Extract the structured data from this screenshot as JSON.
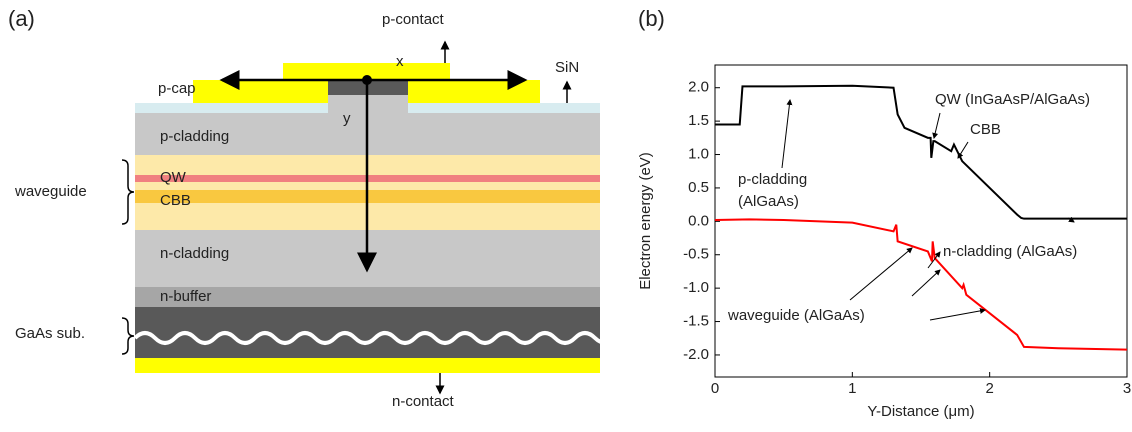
{
  "diagram": {
    "panel": "(a)",
    "p_contact": "p-contact",
    "x_axis": "x",
    "sin": "SiN",
    "p_cap": "p-cap",
    "y_axis": "y",
    "p_cladding": "p-cladding",
    "qw": "QW",
    "cbb": "CBB",
    "n_cladding": "n-cladding",
    "n_buffer": "n-buffer",
    "waveguide": "waveguide",
    "substrate": "GaAs sub.",
    "n_contact": "n-contact"
  },
  "chart_data": {
    "type": "line",
    "panel": "(b)",
    "x_label": "Y-Distance (μm)",
    "y_label": "Electron energy (eV)",
    "xlim": [
      0,
      3
    ],
    "xticks": [
      0,
      1,
      2,
      3
    ],
    "ylim": [
      -2.33,
      2.34
    ],
    "yticks": [
      {
        "value": -2,
        "label": "-2.0"
      },
      {
        "value": -1.5,
        "label": "-1.5"
      },
      {
        "value": -1,
        "label": "-1.0"
      },
      {
        "value": -0.5,
        "label": "-0.5"
      },
      {
        "value": 0,
        "label": "0.0"
      },
      {
        "value": 0.5,
        "label": "0.5"
      },
      {
        "value": 1,
        "label": "1.0"
      },
      {
        "value": 1.5,
        "label": "1.5"
      },
      {
        "value": 2,
        "label": "2.0"
      }
    ],
    "series": [
      {
        "color": "#000000",
        "x": [
          0,
          0.18,
          0.2,
          0.5,
          1.0,
          1.3,
          1.33,
          1.38,
          1.55,
          1.57,
          1.575,
          1.59,
          1.6,
          1.72,
          1.74,
          1.8,
          2.2,
          2.23,
          2.25,
          2.5,
          3.0
        ],
        "values": [
          1.45,
          1.45,
          2.02,
          2.02,
          2.03,
          2.0,
          1.6,
          1.4,
          1.25,
          1.25,
          0.95,
          1.2,
          1.2,
          1.05,
          1.15,
          0.9,
          0.1,
          0.05,
          0.04,
          0.04,
          0.04
        ]
      },
      {
        "color": "#ff0000",
        "x": [
          0,
          0.25,
          0.5,
          1.0,
          1.3,
          1.32,
          1.33,
          1.55,
          1.58,
          1.585,
          1.6,
          1.8,
          1.81,
          1.83,
          2.2,
          2.25,
          2.5,
          3.0
        ],
        "values": [
          0.02,
          0.03,
          0.02,
          -0.02,
          -0.15,
          -0.05,
          -0.3,
          -0.45,
          -0.6,
          -0.3,
          -0.55,
          -1.0,
          -0.95,
          -1.1,
          -1.7,
          -1.88,
          -1.9,
          -1.92
        ]
      }
    ],
    "annotations": [
      "QW (InGaAsP/AlGaAs)",
      "CBB",
      "p-cladding",
      "(AlGaAs)",
      "n-cladding (AlGaAs)",
      "waveguide (AlGaAs)"
    ]
  }
}
